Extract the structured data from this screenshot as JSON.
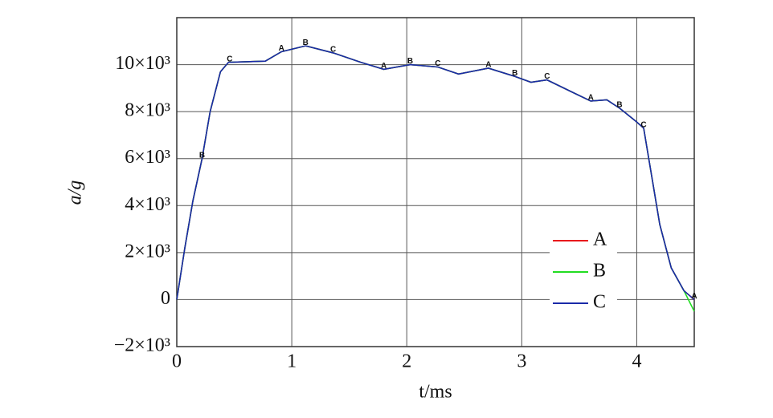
{
  "chart_data": {
    "type": "line",
    "xlabel": "t/ms",
    "ylabel": "a/g",
    "x": [
      0,
      0.07,
      0.14,
      0.22,
      0.29,
      0.38,
      0.45,
      0.77,
      0.91,
      1.12,
      1.36,
      1.6,
      1.8,
      2.03,
      2.27,
      2.45,
      2.71,
      2.94,
      3.08,
      3.22,
      3.43,
      3.6,
      3.74,
      3.85,
      3.99,
      4.06,
      4.13,
      4.2,
      4.3,
      4.41,
      4.5
    ],
    "series": [
      {
        "name": "A",
        "color": "#e8191c",
        "values": [
          0,
          2200,
          4200,
          6000,
          8000,
          9700,
          10100,
          10150,
          10550,
          10800,
          10500,
          10100,
          9800,
          10000,
          9900,
          9600,
          9850,
          9500,
          9250,
          9350,
          8850,
          8450,
          8500,
          8150,
          7600,
          7300,
          5250,
          3200,
          1350,
          380,
          0
        ]
      },
      {
        "name": "B",
        "color": "#22dd22",
        "values": [
          0,
          2200,
          4200,
          6000,
          8000,
          9700,
          10100,
          10150,
          10550,
          10800,
          10500,
          10100,
          9800,
          10000,
          9900,
          9600,
          9850,
          9500,
          9250,
          9350,
          8850,
          8450,
          8500,
          8150,
          7600,
          7300,
          5250,
          3200,
          1350,
          380,
          -500
        ]
      },
      {
        "name": "C",
        "color": "#1a2aa8",
        "values": [
          0,
          2200,
          4200,
          6000,
          8000,
          9700,
          10100,
          10150,
          10550,
          10800,
          10500,
          10100,
          9800,
          10000,
          9900,
          9600,
          9850,
          9500,
          9250,
          9350,
          8850,
          8450,
          8500,
          8150,
          7600,
          7300,
          5250,
          3200,
          1350,
          380,
          0
        ]
      }
    ],
    "annotations": [
      {
        "text": "B",
        "x": 0.22,
        "y": 6000
      },
      {
        "text": "C",
        "x": 0.46,
        "y": 10100
      },
      {
        "text": "A",
        "x": 0.91,
        "y": 10550
      },
      {
        "text": "B",
        "x": 1.12,
        "y": 10800
      },
      {
        "text": "C",
        "x": 1.36,
        "y": 10500
      },
      {
        "text": "A",
        "x": 1.8,
        "y": 9800
      },
      {
        "text": "B",
        "x": 2.03,
        "y": 10000
      },
      {
        "text": "C",
        "x": 2.27,
        "y": 9900
      },
      {
        "text": "A",
        "x": 2.71,
        "y": 9850
      },
      {
        "text": "B",
        "x": 2.94,
        "y": 9500
      },
      {
        "text": "C",
        "x": 3.22,
        "y": 9350
      },
      {
        "text": "A",
        "x": 3.6,
        "y": 8450
      },
      {
        "text": "B",
        "x": 3.85,
        "y": 8150
      },
      {
        "text": "C",
        "x": 4.06,
        "y": 7300
      },
      {
        "text": "A",
        "x": 4.5,
        "y": 0
      }
    ],
    "xlim": [
      0,
      4.5
    ],
    "xticks": [
      0,
      1,
      2,
      3,
      4
    ],
    "ylim": [
      -2000,
      12000
    ],
    "yticks": [
      {
        "value": -2000,
        "label": "−2×10³"
      },
      0,
      {
        "value": 2000,
        "label": "2×10³"
      },
      {
        "value": 4000,
        "label": "4×10³"
      },
      {
        "value": 6000,
        "label": "6×10³"
      },
      {
        "value": 8000,
        "label": "8×10³"
      },
      {
        "value": 10000,
        "label": "10×10³"
      }
    ],
    "grid": true,
    "legend": "lower right"
  }
}
